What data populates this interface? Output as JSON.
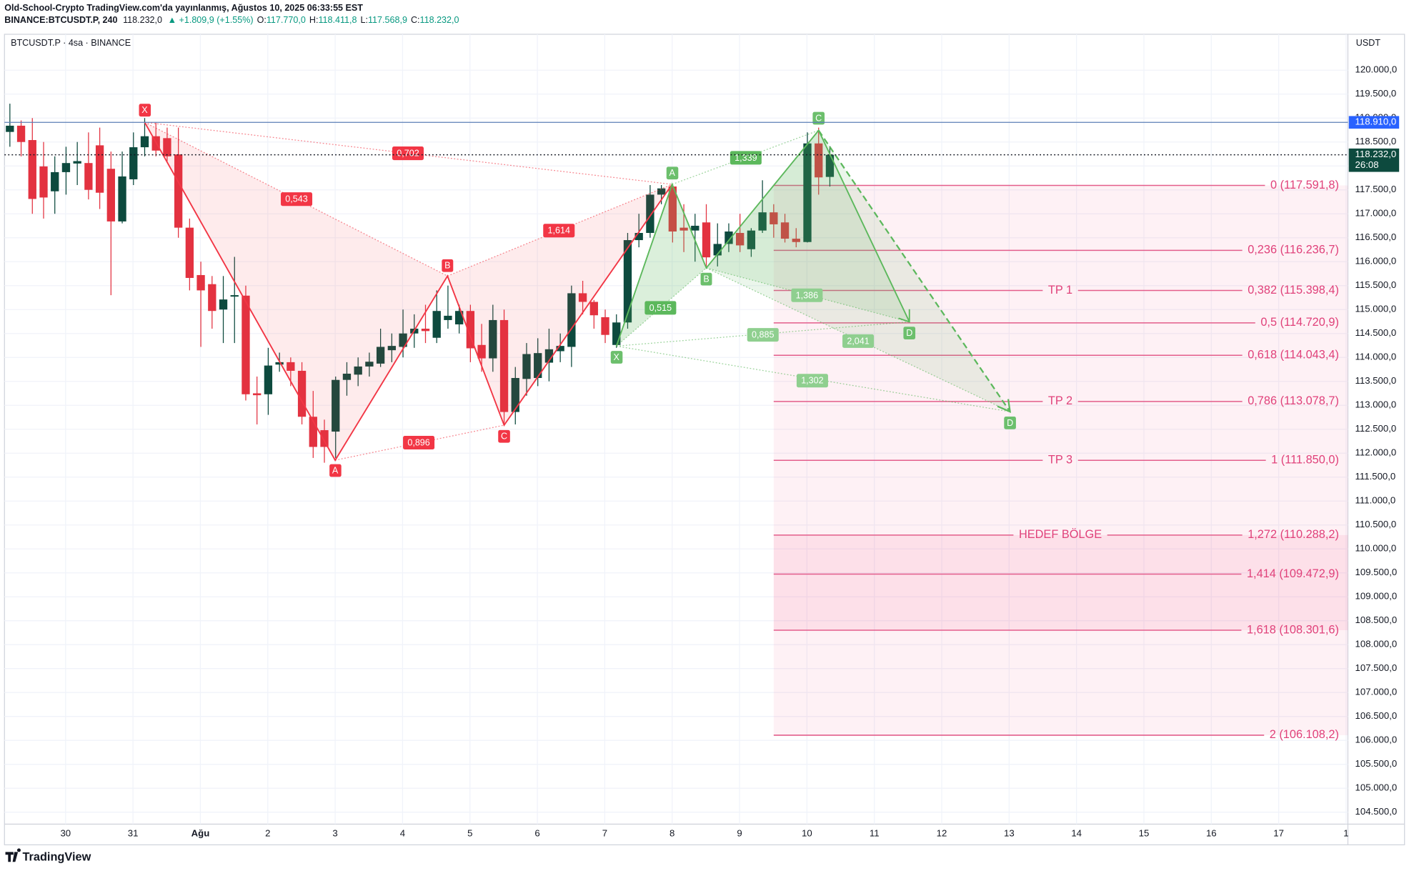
{
  "header": {
    "line1": "Old-School-Crypto TradingView.com'da yayınlanmış, Ağustos 10, 2025 06:33:55 EST",
    "symbol": "BINANCE:BTCUSDT.P, 240",
    "last": "118.232,0",
    "change": "▲ +1.809,9 (+1.55%)",
    "ohlc": [
      {
        "key": "O:",
        "value": "117.770,0"
      },
      {
        "key": "H:",
        "value": "118.411,8"
      },
      {
        "key": "L:",
        "value": "117.568,9"
      },
      {
        "key": "C:",
        "value": "118.232,0"
      }
    ]
  },
  "chart_data": {
    "type": "candlestick",
    "legend": "BTCUSDT.P · 4sa · BINANCE",
    "currency": "USDT",
    "up_color": "#0d4a3e",
    "down_color": "#e33240",
    "grid": true,
    "categories": [
      "30",
      "31",
      "Ağu",
      "2",
      "3",
      "4",
      "5",
      "6",
      "7",
      "8",
      "9",
      "10",
      "11",
      "12",
      "13",
      "14",
      "15",
      "16",
      "17",
      "1"
    ],
    "open": [
      118710,
      118840,
      118540,
      117990,
      117470,
      117870,
      118050,
      118060,
      118430,
      117940,
      116840,
      117720,
      118390,
      118620,
      118580,
      118240,
      116710,
      115720,
      115530,
      115000,
      115270,
      115290,
      113250,
      113230,
      113850,
      113900,
      113720,
      112760,
      112480,
      112450,
      113530,
      113640,
      113810,
      113870,
      114150,
      114220,
      114500,
      114600,
      114410,
      114780,
      114690,
      114970,
      114260,
      113980,
      114780,
      112860,
      113550,
      113570,
      113890,
      114130,
      114220,
      115340,
      115160,
      114840,
      114260,
      114730,
      116450,
      116600,
      117400,
      117570,
      116710,
      116650,
      116820,
      116130,
      116370,
      116600,
      116260,
      116650,
      117030,
      116820,
      116480,
      116410,
      118470,
      117770
    ],
    "high": [
      119300,
      118950,
      119000,
      118500,
      118200,
      118400,
      118500,
      118700,
      118800,
      118300,
      118300,
      118700,
      119000,
      118900,
      118800,
      118800,
      116900,
      116000,
      115700,
      115700,
      116100,
      115500,
      113600,
      114200,
      114100,
      114000,
      113900,
      113300,
      112700,
      113600,
      113900,
      114000,
      114100,
      114600,
      114500,
      115000,
      114900,
      115100,
      115400,
      115500,
      115100,
      115100,
      114700,
      115100,
      115000,
      113800,
      114300,
      114400,
      114600,
      114500,
      115500,
      115600,
      115200,
      115000,
      114900,
      116600,
      117000,
      117600,
      117600,
      117600,
      117200,
      117000,
      117200,
      116800,
      116800,
      117000,
      116700,
      117700,
      117200,
      117000,
      116700,
      118700,
      118800,
      118411.8
    ],
    "low": [
      118400,
      118200,
      117000,
      116900,
      117000,
      117400,
      117600,
      117300,
      117100,
      115300,
      116800,
      117600,
      118200,
      118200,
      118100,
      116500,
      115400,
      114220,
      114600,
      114300,
      114300,
      113100,
      112600,
      112800,
      113700,
      113400,
      112600,
      111900,
      111800,
      111900,
      113200,
      113400,
      113600,
      113800,
      113900,
      114000,
      114200,
      114300,
      114300,
      114600,
      114500,
      113900,
      113700,
      113700,
      112600,
      112600,
      113200,
      113400,
      113500,
      113900,
      113800,
      114900,
      114600,
      114300,
      114200,
      114600,
      116300,
      116500,
      117200,
      116400,
      116200,
      116000,
      115900,
      115900,
      116200,
      116200,
      116100,
      116600,
      116500,
      116400,
      116300,
      116400,
      117400,
      117568.9
    ],
    "close": [
      118840,
      118500,
      117310,
      117340,
      117870,
      118060,
      118100,
      117500,
      117440,
      116840,
      117780,
      118390,
      118620,
      118320,
      118200,
      116710,
      115660,
      115400,
      114970,
      115210,
      115300,
      113230,
      113210,
      113830,
      113900,
      113720,
      112760,
      112130,
      112130,
      113530,
      113660,
      113810,
      113910,
      114220,
      114240,
      114500,
      114600,
      114550,
      114970,
      114870,
      114970,
      114190,
      113980,
      114780,
      112860,
      113570,
      114070,
      114090,
      114170,
      114240,
      115340,
      115160,
      114880,
      114470,
      114730,
      116450,
      116600,
      117400,
      117530,
      116630,
      116650,
      116750,
      116090,
      116370,
      116630,
      116340,
      116650,
      117030,
      116780,
      116480,
      116410,
      118470,
      117760,
      118232
    ],
    "ylim": [
      104250,
      120750
    ],
    "yticks": [
      {
        "value": 120000,
        "label": "120.000,0"
      },
      {
        "value": 119500,
        "label": "119.500,0"
      },
      {
        "value": 119000,
        "label": "119.000,0"
      },
      {
        "value": 118500,
        "label": "118.500,0"
      },
      {
        "value": 118000,
        "label": "118.000,0"
      },
      {
        "value": 117500,
        "label": "117.500,0"
      },
      {
        "value": 117000,
        "label": "117.000,0"
      },
      {
        "value": 116500,
        "label": "116.500,0"
      },
      {
        "value": 116000,
        "label": "116.000,0"
      },
      {
        "value": 115500,
        "label": "115.500,0"
      },
      {
        "value": 115000,
        "label": "115.000,0"
      },
      {
        "value": 114500,
        "label": "114.500,0"
      },
      {
        "value": 114000,
        "label": "114.000,0"
      },
      {
        "value": 113500,
        "label": "113.500,0"
      },
      {
        "value": 113000,
        "label": "113.000,0"
      },
      {
        "value": 112500,
        "label": "112.500,0"
      },
      {
        "value": 112000,
        "label": "112.000,0"
      },
      {
        "value": 111500,
        "label": "111.500,0"
      },
      {
        "value": 111000,
        "label": "111.000,0"
      },
      {
        "value": 110500,
        "label": "110.500,0"
      },
      {
        "value": 110000,
        "label": "110.000,0"
      },
      {
        "value": 109500,
        "label": "109.500,0"
      },
      {
        "value": 109000,
        "label": "109.000,0"
      },
      {
        "value": 108500,
        "label": "108.500,0"
      },
      {
        "value": 108000,
        "label": "108.000,0"
      },
      {
        "value": 107500,
        "label": "107.500,0"
      },
      {
        "value": 107000,
        "label": "107.000,0"
      },
      {
        "value": 106500,
        "label": "106.500,0"
      },
      {
        "value": 106000,
        "label": "106.000,0"
      },
      {
        "value": 105500,
        "label": "105.500,0"
      },
      {
        "value": 105000,
        "label": "105.000,0"
      },
      {
        "value": 104500,
        "label": "104.500,0"
      }
    ],
    "price_line": {
      "value": 118910,
      "label": "118.910,0",
      "color": "#2962ff"
    },
    "current": {
      "value": 118232,
      "label": "118.232,0",
      "countdown": "26:08",
      "color": "#0d4a3e"
    },
    "fib_levels": [
      {
        "label": "0 (117.591,8)",
        "value": 117591.8
      },
      {
        "label": "0,236 (116.236,7)",
        "value": 116236.7
      },
      {
        "label": "0,382 (115.398,4)",
        "value": 115398.4,
        "tag": "TP 1"
      },
      {
        "label": "0,5 (114.720,9)",
        "value": 114720.9
      },
      {
        "label": "0,618 (114.043,4)",
        "value": 114043.4
      },
      {
        "label": "0,786 (113.078,7)",
        "value": 113078.7,
        "tag": "TP 2"
      },
      {
        "label": "1 (111.850,0)",
        "value": 111850,
        "tag": "TP 3"
      },
      {
        "label": "1,272 (110.288,2)",
        "value": 110288.2,
        "tag": "HEDEF BÖLGE"
      },
      {
        "label": "1,414 (109.472,9)",
        "value": 109472.9
      },
      {
        "label": "1,618 (108.301,6)",
        "value": 108301.6
      },
      {
        "label": "2 (106.108,2)",
        "value": 106108.2
      }
    ],
    "patterns": [
      {
        "color": "#f23645",
        "points": [
          "X",
          "A",
          "B",
          "C"
        ],
        "ratios": [
          "0,543",
          "0,702",
          "1,614",
          "0,896"
        ]
      },
      {
        "color": "#5cb85c",
        "points": [
          "X",
          "A",
          "B",
          "C",
          "D",
          "D"
        ],
        "ratios": [
          "0,515",
          "1,339",
          "1,386",
          "0,885",
          "2,041",
          "1,302"
        ]
      }
    ]
  },
  "footer": {
    "brand": "TradingView"
  }
}
